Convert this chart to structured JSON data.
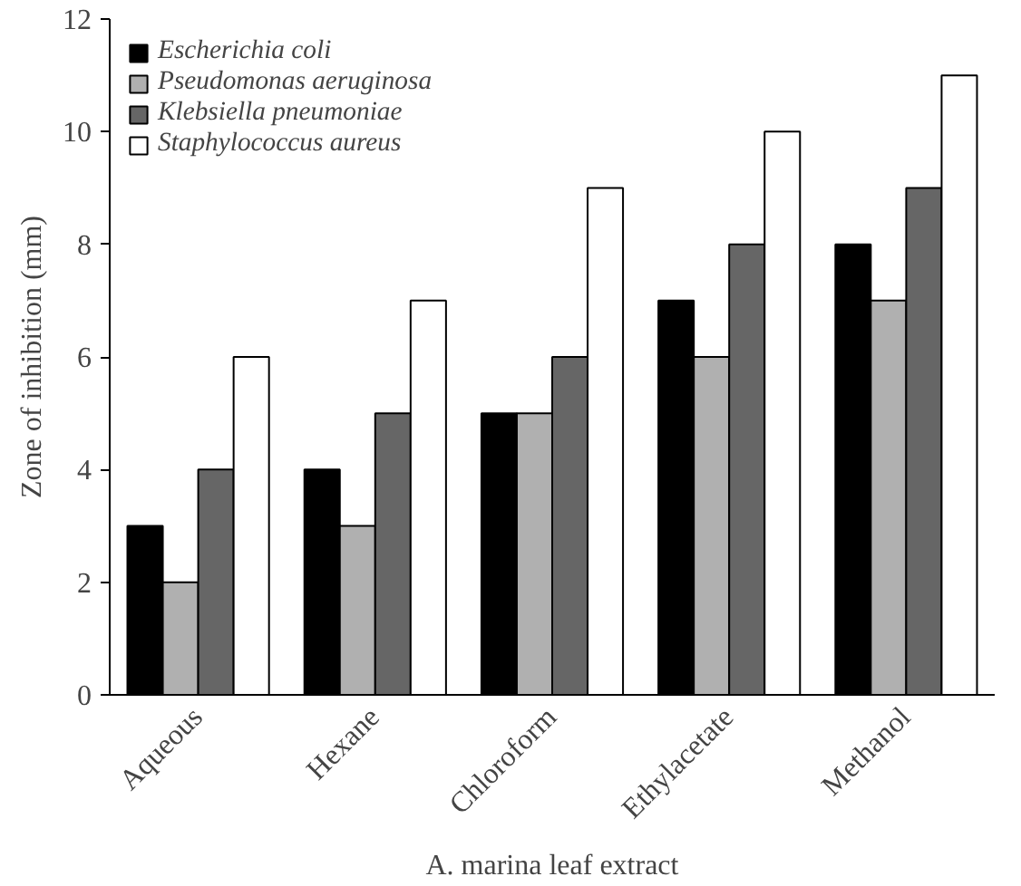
{
  "chart_data": {
    "type": "bar",
    "xlabel": "A. marina leaf extract",
    "ylabel": "Zone of inhibition (mm)",
    "categories": [
      "Aqueous",
      "Hexane",
      "Chloroform",
      "Ethylacetate",
      "Methanol"
    ],
    "series": [
      {
        "name": "Escherichia coli",
        "color": "#000000",
        "values": [
          3,
          4,
          5,
          7,
          8
        ]
      },
      {
        "name": "Pseudomonas aeruginosa",
        "color": "#b0b0b0",
        "values": [
          2,
          3,
          5,
          6,
          7
        ]
      },
      {
        "name": "Klebsiella pneumoniae",
        "color": "#666666",
        "values": [
          4,
          5,
          6,
          8,
          9
        ]
      },
      {
        "name": "Staphylococcus aureus",
        "color": "#ffffff",
        "values": [
          6,
          7,
          9,
          10,
          11
        ]
      }
    ],
    "ylim": [
      0,
      12
    ],
    "yticks": [
      0,
      2,
      4,
      6,
      8,
      10,
      12
    ],
    "grid": false,
    "legend": "top left"
  }
}
